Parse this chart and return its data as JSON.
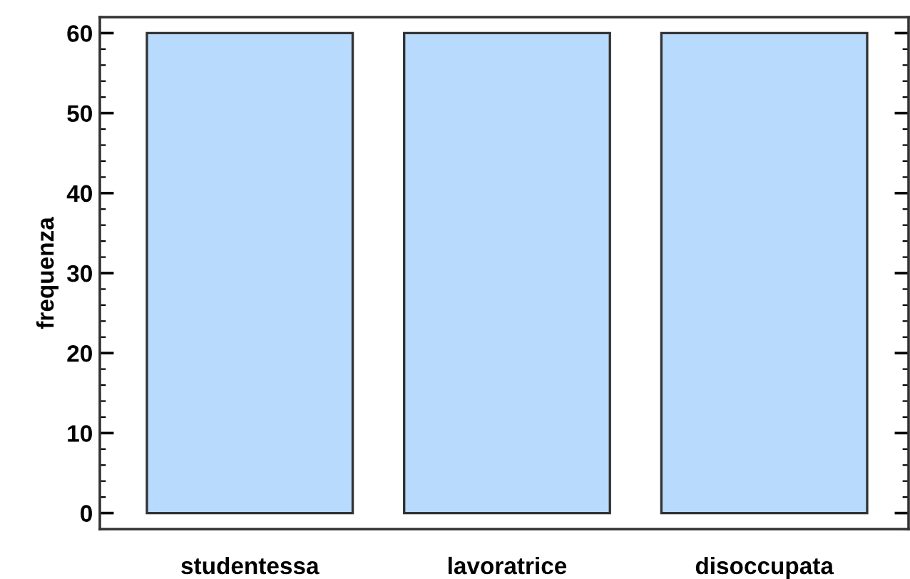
{
  "chart_data": {
    "type": "bar",
    "ylabel": "frequenza",
    "categories": [
      "studentessa",
      "lavoratrice",
      "disoccupata"
    ],
    "values": [
      60,
      60,
      60
    ],
    "color": "#b8dafc",
    "ylim": [
      -2,
      62
    ],
    "yticks": [
      0,
      10,
      20,
      30,
      40,
      50,
      60
    ],
    "grid": false,
    "legend": false
  }
}
